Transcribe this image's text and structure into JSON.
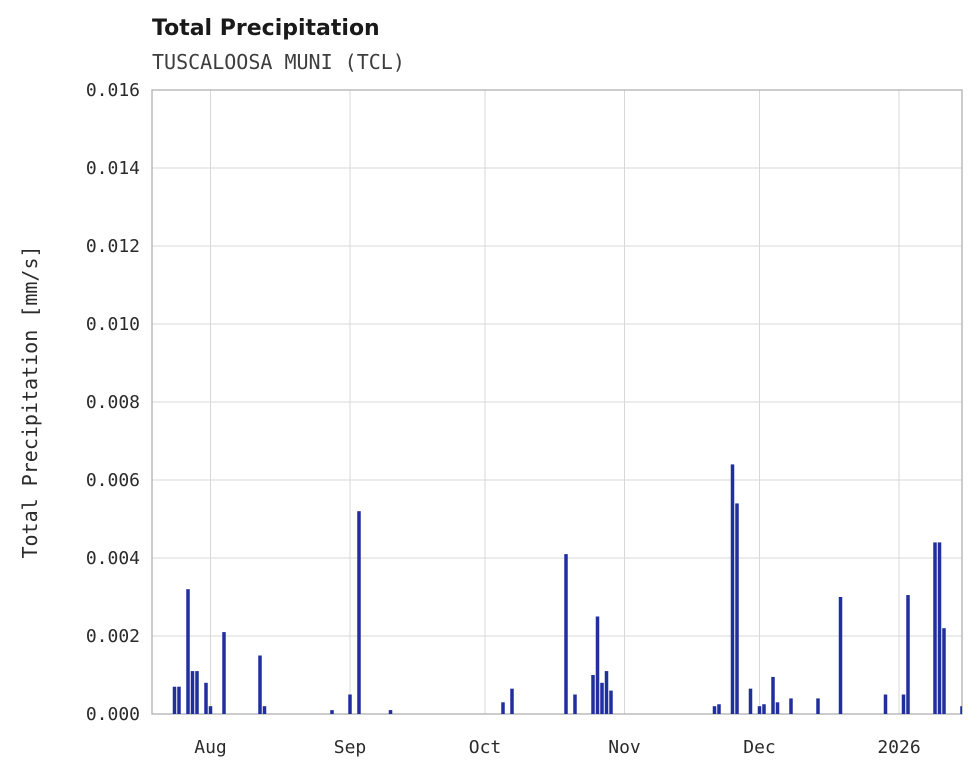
{
  "header": {
    "title": "Total Precipitation",
    "subtitle": "TUSCALOOSA MUNI (TCL)"
  },
  "chart_data": {
    "type": "bar",
    "title": "Total Precipitation",
    "subtitle": "TUSCALOOSA MUNI (TCL)",
    "xlabel": "",
    "ylabel": "Total Precipitation [mm/s]",
    "ylim": [
      0,
      0.016
    ],
    "grid": true,
    "legend": "none",
    "colors": {
      "bar": "#212e9e",
      "grid": "#d8d8d8",
      "border": "#b0b0b0",
      "title": "#1a1a1a",
      "subtitle": "#3d3d3d",
      "tick": "#2b2b2b"
    },
    "yticks": [
      {
        "value": 0.0,
        "label": "0.000"
      },
      {
        "value": 0.002,
        "label": "0.002"
      },
      {
        "value": 0.004,
        "label": "0.004"
      },
      {
        "value": 0.006,
        "label": "0.006"
      },
      {
        "value": 0.008,
        "label": "0.008"
      },
      {
        "value": 0.01,
        "label": "0.010"
      },
      {
        "value": 0.012,
        "label": "0.012"
      },
      {
        "value": 0.014,
        "label": "0.014"
      },
      {
        "value": 0.016,
        "label": "0.016"
      }
    ],
    "x_domain": [
      "2025-07-19",
      "2026-01-15"
    ],
    "xticks": [
      {
        "date": "2025-08-01",
        "label": "Aug"
      },
      {
        "date": "2025-09-01",
        "label": "Sep"
      },
      {
        "date": "2025-10-01",
        "label": "Oct"
      },
      {
        "date": "2025-11-01",
        "label": "Nov"
      },
      {
        "date": "2025-12-01",
        "label": "Dec"
      },
      {
        "date": "2026-01-01",
        "label": "2026"
      }
    ],
    "points": [
      {
        "date": "2025-07-24",
        "value": 0.0007
      },
      {
        "date": "2025-07-25",
        "value": 0.0007
      },
      {
        "date": "2025-07-27",
        "value": 0.0032
      },
      {
        "date": "2025-07-28",
        "value": 0.0011
      },
      {
        "date": "2025-07-29",
        "value": 0.0011
      },
      {
        "date": "2025-07-31",
        "value": 0.0008
      },
      {
        "date": "2025-08-01",
        "value": 0.0002
      },
      {
        "date": "2025-08-04",
        "value": 0.0021
      },
      {
        "date": "2025-08-12",
        "value": 0.0015
      },
      {
        "date": "2025-08-13",
        "value": 0.0002
      },
      {
        "date": "2025-08-28",
        "value": 0.0001
      },
      {
        "date": "2025-09-01",
        "value": 0.0005
      },
      {
        "date": "2025-09-03",
        "value": 0.0052
      },
      {
        "date": "2025-09-10",
        "value": 0.0001
      },
      {
        "date": "2025-10-05",
        "value": 0.0003
      },
      {
        "date": "2025-10-07",
        "value": 0.00065
      },
      {
        "date": "2025-10-19",
        "value": 0.0041
      },
      {
        "date": "2025-10-21",
        "value": 0.0005
      },
      {
        "date": "2025-10-25",
        "value": 0.001
      },
      {
        "date": "2025-10-26",
        "value": 0.0025
      },
      {
        "date": "2025-10-27",
        "value": 0.0008
      },
      {
        "date": "2025-10-28",
        "value": 0.0011
      },
      {
        "date": "2025-10-29",
        "value": 0.0006
      },
      {
        "date": "2025-11-21",
        "value": 0.0002
      },
      {
        "date": "2025-11-22",
        "value": 0.00025
      },
      {
        "date": "2025-11-25",
        "value": 0.0064
      },
      {
        "date": "2025-11-26",
        "value": 0.0054
      },
      {
        "date": "2025-11-29",
        "value": 0.00065
      },
      {
        "date": "2025-12-01",
        "value": 0.0002
      },
      {
        "date": "2025-12-02",
        "value": 0.00025
      },
      {
        "date": "2025-12-04",
        "value": 0.00095
      },
      {
        "date": "2025-12-05",
        "value": 0.0003
      },
      {
        "date": "2025-12-08",
        "value": 0.0004
      },
      {
        "date": "2025-12-14",
        "value": 0.0004
      },
      {
        "date": "2025-12-19",
        "value": 0.003
      },
      {
        "date": "2025-12-29",
        "value": 0.0005
      },
      {
        "date": "2026-01-02",
        "value": 0.0005
      },
      {
        "date": "2026-01-03",
        "value": 0.00305
      },
      {
        "date": "2026-01-09",
        "value": 0.0044
      },
      {
        "date": "2026-01-10",
        "value": 0.0044
      },
      {
        "date": "2026-01-11",
        "value": 0.0022
      },
      {
        "date": "2026-01-15",
        "value": 0.0002
      }
    ]
  }
}
